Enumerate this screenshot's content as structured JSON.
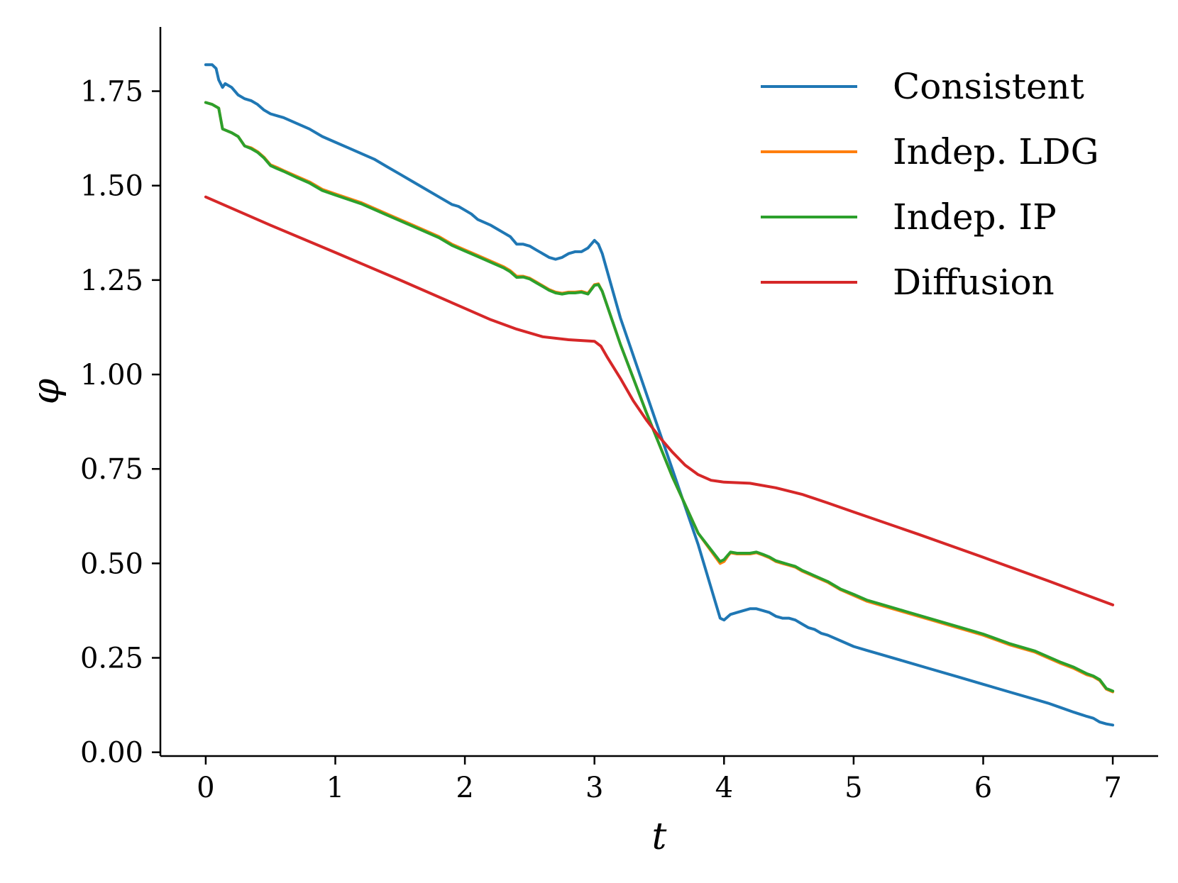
{
  "chart_data": {
    "type": "line",
    "title": "",
    "xlabel": "t",
    "ylabel": "φ",
    "xlim": [
      -0.35,
      7.35
    ],
    "ylim": [
      -0.01,
      1.92
    ],
    "grid": false,
    "legend_position": "top-right",
    "x_ticks": [
      0,
      1,
      2,
      3,
      4,
      5,
      6,
      7
    ],
    "x_tick_labels": [
      "0",
      "1",
      "2",
      "3",
      "4",
      "5",
      "6",
      "7"
    ],
    "y_ticks": [
      0,
      0.25,
      0.5,
      0.75,
      1.0,
      1.25,
      1.5,
      1.75
    ],
    "y_tick_labels": [
      "0.00",
      "0.25",
      "0.50",
      "0.75",
      "1.00",
      "1.25",
      "1.50",
      "1.75"
    ],
    "series": [
      {
        "name": "Consistent",
        "color": "#1f77b4",
        "x": [
          0,
          0.05,
          0.08,
          0.1,
          0.13,
          0.15,
          0.2,
          0.25,
          0.3,
          0.35,
          0.4,
          0.45,
          0.5,
          0.55,
          0.6,
          0.7,
          0.8,
          0.9,
          1.0,
          1.1,
          1.2,
          1.3,
          1.4,
          1.5,
          1.6,
          1.7,
          1.8,
          1.9,
          1.95,
          2.0,
          2.05,
          2.1,
          2.2,
          2.25,
          2.3,
          2.35,
          2.4,
          2.45,
          2.5,
          2.55,
          2.6,
          2.65,
          2.7,
          2.75,
          2.8,
          2.85,
          2.9,
          2.95,
          3.0,
          3.03,
          3.06,
          3.2,
          3.4,
          3.6,
          3.8,
          3.97,
          4.0,
          4.05,
          4.1,
          4.15,
          4.2,
          4.25,
          4.3,
          4.35,
          4.4,
          4.45,
          4.5,
          4.55,
          4.6,
          4.65,
          4.7,
          4.75,
          4.8,
          4.9,
          5.0,
          5.1,
          5.2,
          5.4,
          5.6,
          5.8,
          6.0,
          6.2,
          6.4,
          6.5,
          6.6,
          6.7,
          6.8,
          6.85,
          6.9,
          6.95,
          7.0
        ],
        "y": [
          1.82,
          1.82,
          1.81,
          1.78,
          1.76,
          1.77,
          1.76,
          1.74,
          1.73,
          1.725,
          1.715,
          1.7,
          1.69,
          1.685,
          1.68,
          1.665,
          1.65,
          1.63,
          1.615,
          1.6,
          1.585,
          1.57,
          1.55,
          1.53,
          1.51,
          1.49,
          1.47,
          1.45,
          1.445,
          1.435,
          1.425,
          1.41,
          1.395,
          1.385,
          1.375,
          1.365,
          1.345,
          1.345,
          1.34,
          1.33,
          1.32,
          1.31,
          1.305,
          1.31,
          1.32,
          1.325,
          1.325,
          1.335,
          1.355,
          1.345,
          1.32,
          1.15,
          0.95,
          0.75,
          0.55,
          0.355,
          0.35,
          0.365,
          0.37,
          0.375,
          0.38,
          0.38,
          0.375,
          0.37,
          0.36,
          0.355,
          0.355,
          0.35,
          0.34,
          0.33,
          0.325,
          0.315,
          0.31,
          0.295,
          0.28,
          0.27,
          0.26,
          0.24,
          0.22,
          0.2,
          0.18,
          0.16,
          0.14,
          0.13,
          0.118,
          0.106,
          0.095,
          0.09,
          0.08,
          0.075,
          0.072
        ]
      },
      {
        "name": "Indep. LDG",
        "color": "#ff7f0e",
        "x": [
          0,
          0.05,
          0.1,
          0.13,
          0.2,
          0.25,
          0.3,
          0.35,
          0.4,
          0.45,
          0.5,
          0.55,
          0.6,
          0.7,
          0.8,
          0.9,
          1.0,
          1.2,
          1.4,
          1.6,
          1.8,
          1.9,
          2.0,
          2.1,
          2.2,
          2.3,
          2.35,
          2.4,
          2.45,
          2.5,
          2.55,
          2.6,
          2.65,
          2.7,
          2.75,
          2.8,
          2.85,
          2.9,
          2.95,
          3.0,
          3.03,
          3.06,
          3.2,
          3.4,
          3.6,
          3.8,
          3.97,
          4.0,
          4.03,
          4.05,
          4.1,
          4.2,
          4.25,
          4.3,
          4.35,
          4.4,
          4.45,
          4.5,
          4.55,
          4.6,
          4.7,
          4.8,
          4.9,
          5.0,
          5.1,
          5.2,
          5.4,
          5.6,
          5.8,
          6.0,
          6.2,
          6.4,
          6.5,
          6.6,
          6.7,
          6.8,
          6.85,
          6.9,
          6.95,
          7.0
        ],
        "y": [
          1.72,
          1.715,
          1.705,
          1.65,
          1.64,
          1.63,
          1.605,
          1.6,
          1.59,
          1.575,
          1.555,
          1.548,
          1.54,
          1.525,
          1.51,
          1.49,
          1.478,
          1.455,
          1.425,
          1.395,
          1.365,
          1.345,
          1.33,
          1.315,
          1.3,
          1.285,
          1.275,
          1.26,
          1.26,
          1.255,
          1.245,
          1.235,
          1.225,
          1.218,
          1.215,
          1.218,
          1.218,
          1.22,
          1.215,
          1.238,
          1.24,
          1.22,
          1.08,
          0.9,
          0.73,
          0.58,
          0.5,
          0.505,
          0.52,
          0.528,
          0.525,
          0.525,
          0.528,
          0.522,
          0.515,
          0.505,
          0.5,
          0.495,
          0.49,
          0.48,
          0.465,
          0.45,
          0.43,
          0.415,
          0.4,
          0.39,
          0.37,
          0.35,
          0.33,
          0.31,
          0.285,
          0.265,
          0.25,
          0.235,
          0.222,
          0.205,
          0.2,
          0.19,
          0.167,
          0.16
        ]
      },
      {
        "name": "Indep. IP",
        "color": "#2ca02c",
        "x": [
          0,
          0.05,
          0.1,
          0.13,
          0.2,
          0.25,
          0.3,
          0.35,
          0.4,
          0.45,
          0.5,
          0.55,
          0.6,
          0.7,
          0.8,
          0.9,
          1.0,
          1.2,
          1.4,
          1.6,
          1.8,
          1.9,
          2.0,
          2.1,
          2.2,
          2.3,
          2.35,
          2.4,
          2.45,
          2.5,
          2.55,
          2.6,
          2.65,
          2.7,
          2.75,
          2.8,
          2.85,
          2.9,
          2.95,
          3.0,
          3.03,
          3.06,
          3.2,
          3.4,
          3.6,
          3.8,
          3.97,
          4.0,
          4.03,
          4.05,
          4.1,
          4.2,
          4.25,
          4.3,
          4.35,
          4.4,
          4.45,
          4.5,
          4.55,
          4.6,
          4.7,
          4.8,
          4.9,
          5.0,
          5.1,
          5.2,
          5.4,
          5.6,
          5.8,
          6.0,
          6.2,
          6.4,
          6.5,
          6.6,
          6.7,
          6.8,
          6.85,
          6.9,
          6.95,
          7.0
        ],
        "y": [
          1.72,
          1.715,
          1.705,
          1.65,
          1.64,
          1.63,
          1.605,
          1.598,
          1.588,
          1.573,
          1.553,
          1.545,
          1.538,
          1.522,
          1.507,
          1.487,
          1.475,
          1.452,
          1.422,
          1.392,
          1.362,
          1.342,
          1.327,
          1.312,
          1.297,
          1.282,
          1.272,
          1.257,
          1.258,
          1.253,
          1.243,
          1.233,
          1.223,
          1.216,
          1.213,
          1.216,
          1.216,
          1.218,
          1.213,
          1.236,
          1.238,
          1.22,
          1.08,
          0.9,
          0.73,
          0.58,
          0.505,
          0.51,
          0.522,
          0.53,
          0.527,
          0.527,
          0.53,
          0.524,
          0.517,
          0.507,
          0.502,
          0.497,
          0.492,
          0.482,
          0.467,
          0.452,
          0.432,
          0.418,
          0.403,
          0.393,
          0.373,
          0.353,
          0.333,
          0.313,
          0.288,
          0.268,
          0.253,
          0.238,
          0.225,
          0.208,
          0.202,
          0.192,
          0.169,
          0.162
        ]
      },
      {
        "name": "Diffusion",
        "color": "#d62728",
        "x": [
          0,
          0.5,
          1.0,
          1.5,
          2.0,
          2.2,
          2.4,
          2.6,
          2.8,
          2.9,
          3.0,
          3.05,
          3.1,
          3.2,
          3.3,
          3.4,
          3.5,
          3.6,
          3.7,
          3.8,
          3.9,
          4.0,
          4.2,
          4.4,
          4.6,
          4.8,
          5.0,
          5.5,
          6.0,
          6.5,
          7.0
        ],
        "y": [
          1.47,
          1.395,
          1.323,
          1.25,
          1.175,
          1.145,
          1.12,
          1.1,
          1.092,
          1.09,
          1.088,
          1.075,
          1.045,
          0.99,
          0.93,
          0.88,
          0.835,
          0.795,
          0.76,
          0.735,
          0.72,
          0.715,
          0.712,
          0.7,
          0.683,
          0.66,
          0.636,
          0.577,
          0.516,
          0.454,
          0.39
        ]
      }
    ]
  }
}
